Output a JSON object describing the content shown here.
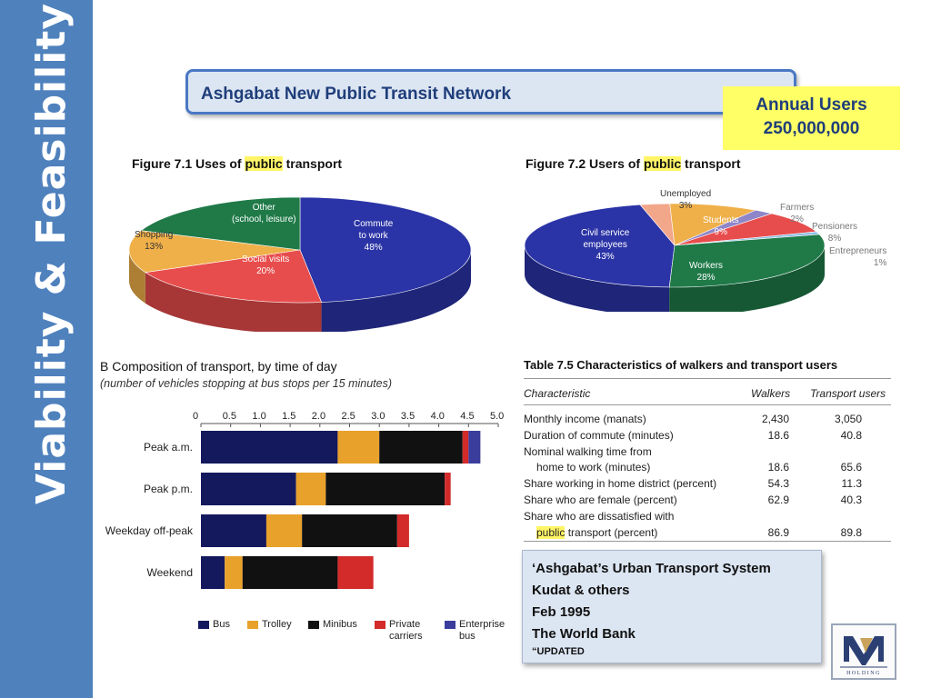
{
  "slide": {
    "side_title": "Viability & Feasibility",
    "title": "Ashgabat New Public Transit Network",
    "annual_label": "Annual Users",
    "annual_value": "250,000,000",
    "source": {
      "line1": "‘Ashgabat’s Urban Transport System",
      "line2": "Kudat & others",
      "line3": "Feb 1995",
      "line4": "The World Bank",
      "line5": "“UPDATED"
    },
    "logo_text": "HOLDING"
  },
  "colors": {
    "sidebar": "#4f81bd",
    "bus": "#14195e",
    "trolley": "#e8a12b",
    "minibus": "#111111",
    "private": "#d32a2a",
    "enterprise": "#3a3d9c",
    "highlight": "#fff566"
  },
  "chart_data": [
    {
      "type": "pie",
      "title_prefix": "Figure 7.1  Uses of ",
      "title_highlight": "public",
      "title_suffix": " transport",
      "slices": [
        {
          "label": "Commute to work",
          "label_lines": [
            "Commute",
            "to work"
          ],
          "value": 48,
          "value_label": "48%",
          "color": "#2b34a6"
        },
        {
          "label": "Social visits",
          "label_lines": [
            "Social visits"
          ],
          "value": 20,
          "value_label": "20%",
          "color": "#e84d4d"
        },
        {
          "label": "Shopping",
          "label_lines": [
            "Shopping"
          ],
          "value": 13,
          "value_label": "13%",
          "color": "#efb04a"
        },
        {
          "label": "Other (school, leisure)",
          "label_lines": [
            "Other",
            "(school, leisure)"
          ],
          "value": 19,
          "value_label": "",
          "color": "#1f7a48"
        }
      ]
    },
    {
      "type": "pie",
      "title_prefix": "Figure 7.2  Users of ",
      "title_highlight": "public",
      "title_suffix": " transport",
      "slices": [
        {
          "label": "Civil service employees",
          "label_lines": [
            "Civil service",
            "employees"
          ],
          "value": 43,
          "value_label": "43%",
          "color": "#2b34a6"
        },
        {
          "label": "Unemployed",
          "label_lines": [
            "Unemployed"
          ],
          "value": 3,
          "value_label": "3%",
          "color": "#f2a68a"
        },
        {
          "label": "Students",
          "label_lines": [
            "Students"
          ],
          "value": 9,
          "value_label": "9%",
          "color": "#efb04a"
        },
        {
          "label": "Farmers",
          "label_lines": [
            "Farmers"
          ],
          "value": 2,
          "value_label": "2%",
          "color": "#8e86c8"
        },
        {
          "label": "Pensioners",
          "label_lines": [
            "Pensioners"
          ],
          "value": 8,
          "value_label": "8%",
          "color": "#e84d4d"
        },
        {
          "label": "Entrepreneurs",
          "label_lines": [
            "Entrepreneurs"
          ],
          "value": 1,
          "value_label": "1%",
          "color": "#8fc0e8"
        },
        {
          "label": "Workers",
          "label_lines": [
            "Workers"
          ],
          "value": 28,
          "value_label": "28%",
          "color": "#1f7a48"
        }
      ]
    },
    {
      "type": "bar",
      "orientation": "horizontal",
      "stacked": true,
      "title": "B  Composition of transport, by time of day",
      "subtitle": "(number of vehicles stopping at bus stops per 15 minutes)",
      "categories": [
        "Peak a.m.",
        "Peak p.m.",
        "Weekday off-peak",
        "Weekend"
      ],
      "xlim": [
        0,
        5
      ],
      "x_ticks": [
        "0",
        "0.5",
        "1.0",
        "1.5",
        "2.0",
        "2.5",
        "3.0",
        "3.5",
        "4.0",
        "4.5",
        "5.0"
      ],
      "legend_position": "bottom",
      "series": [
        {
          "name": "Bus",
          "values": [
            2.3,
            1.6,
            1.1,
            0.4
          ]
        },
        {
          "name": "Trolley",
          "values": [
            0.7,
            0.5,
            0.6,
            0.3
          ]
        },
        {
          "name": "Minibus",
          "values": [
            1.4,
            2.0,
            1.6,
            1.6
          ]
        },
        {
          "name": "Private carriers",
          "values": [
            0.1,
            0.1,
            0.2,
            0.6
          ]
        },
        {
          "name": "Enterprise bus",
          "values": [
            0.2,
            0,
            0,
            0
          ]
        }
      ]
    },
    {
      "type": "table",
      "title": "Table 7.5  Characteristics of walkers and transport users",
      "columns": [
        "Characteristic",
        "Walkers",
        "Transport users"
      ],
      "rows": [
        {
          "label": "Monthly income (manats)",
          "walkers": "2,430",
          "transport": "3,050"
        },
        {
          "label": "Duration of commute (minutes)",
          "walkers": "18.6",
          "transport": "40.8"
        },
        {
          "label": "Nominal walking time from",
          "walkers": "",
          "transport": ""
        },
        {
          "label": "home to work (minutes)",
          "walkers": "18.6",
          "transport": "65.6",
          "indent": true
        },
        {
          "label": "Share working in home district (percent)",
          "walkers": "54.3",
          "transport": "11.3"
        },
        {
          "label": "Share who are female (percent)",
          "walkers": "62.9",
          "transport": "40.3"
        },
        {
          "label": "Share who are dissatisfied with",
          "walkers": "",
          "transport": ""
        },
        {
          "label_highlight": "public",
          "label": " transport (percent)",
          "walkers": "86.9",
          "transport": "89.8",
          "indent": true
        }
      ]
    }
  ]
}
